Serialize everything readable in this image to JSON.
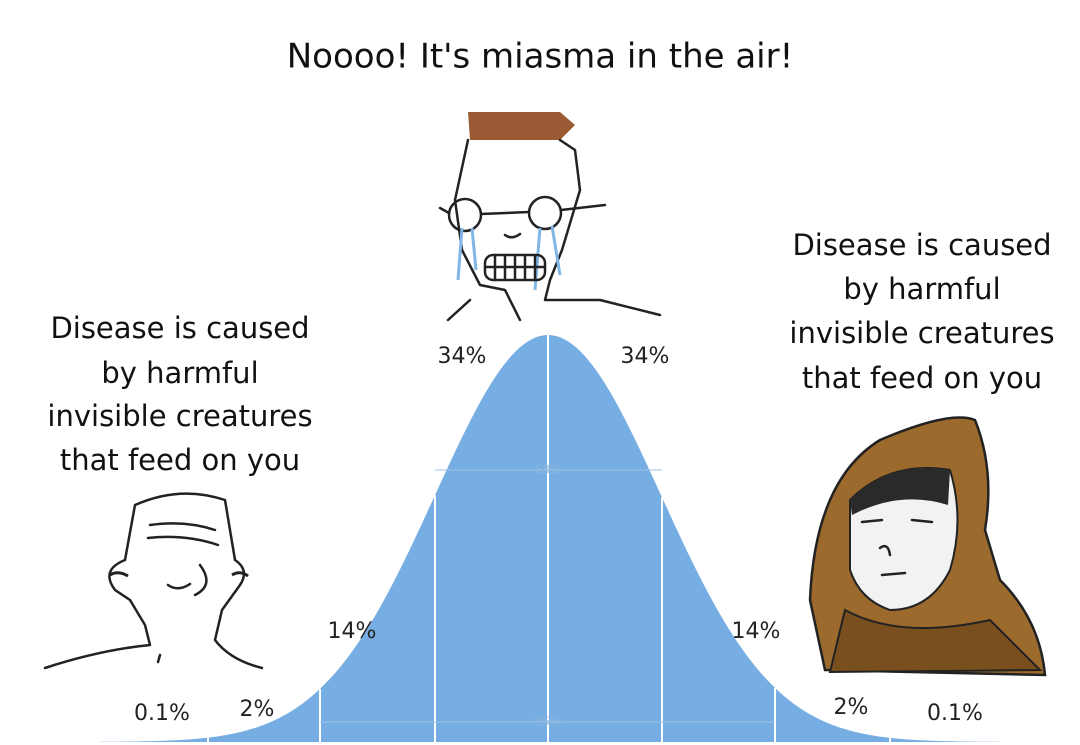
{
  "title": "Noooo! It's miasma in the air!",
  "left_caption": [
    "Disease is caused",
    "by harmful",
    "invisible creatures",
    "that feed on you"
  ],
  "right_caption": [
    "Disease is caused",
    "by harmful",
    "invisible creatures",
    "that feed on you"
  ],
  "curve_labels": [
    "0.1%",
    "2%",
    "14%",
    "34%",
    "34%",
    "14%",
    "2%",
    "0.1%"
  ],
  "inner_labels": [
    "68%",
    "95%"
  ]
}
